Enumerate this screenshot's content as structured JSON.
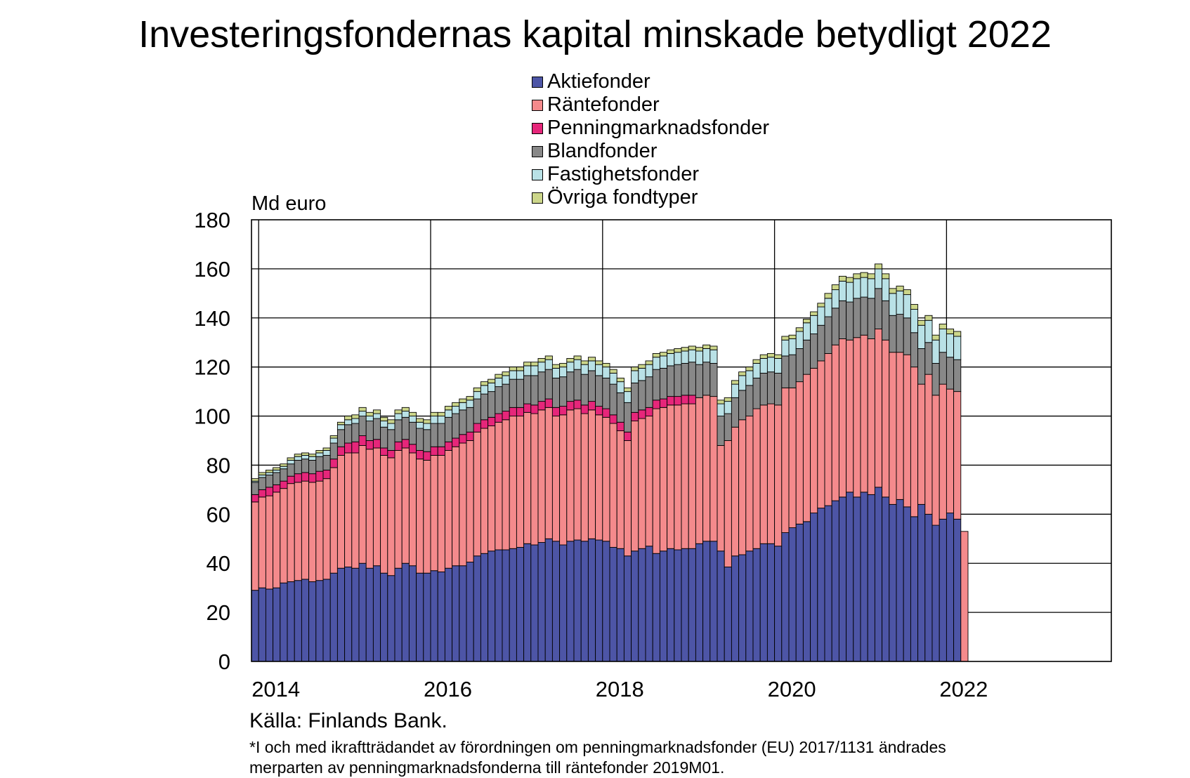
{
  "chart_data": {
    "type": "bar",
    "stacked": true,
    "title": "Investeringsfondernas kapital minskade betydligt 2022",
    "ylabel": "Md euro",
    "ylim": [
      0,
      180
    ],
    "yticks": [
      "0",
      "20",
      "40",
      "60",
      "80",
      "100",
      "120",
      "140",
      "160",
      "180"
    ],
    "xticks": [
      "2014",
      "2016",
      "2018",
      "2020",
      "2022"
    ],
    "x_start": "2013-12",
    "x_end": "2022-11",
    "grid": true,
    "legend_position": "top-center",
    "series": [
      {
        "name": "Aktiefonder",
        "color": "#4d55a6",
        "values": [
          29,
          30,
          29.5,
          30,
          32,
          32.5,
          33,
          33.5,
          32.5,
          33,
          33.5,
          36,
          38,
          38.5,
          38,
          40,
          38,
          39,
          36,
          35,
          38,
          40,
          39,
          36,
          36,
          37,
          36.5,
          38,
          39,
          39,
          40.5,
          43,
          44,
          45,
          45.5,
          45.5,
          46,
          46.5,
          48,
          47.5,
          48.5,
          50,
          49,
          47.5,
          49,
          49.5,
          49,
          50,
          49.5,
          49,
          46.5,
          46,
          43,
          45,
          46,
          47,
          44,
          45,
          46,
          45.5,
          46,
          46,
          48,
          49,
          49,
          45,
          38.5,
          43,
          43.5,
          45,
          46,
          48,
          48,
          47,
          52.5,
          54.5,
          56,
          57,
          60.5,
          62.5,
          63.5,
          65.5,
          67,
          69,
          67,
          69,
          68,
          71,
          67,
          64,
          66,
          63,
          59,
          64,
          60,
          55.5,
          58,
          60.5,
          58
        ]
      },
      {
        "name": "Räntefonder",
        "color": "#f48a8c",
        "values": [
          36,
          37,
          38,
          39,
          38.5,
          40,
          40,
          40,
          40.5,
          40.5,
          41,
          43,
          46,
          46.5,
          47,
          48,
          48.5,
          48,
          48,
          48,
          48,
          47,
          46,
          46.5,
          46,
          47,
          47.5,
          48,
          48.5,
          50,
          49.5,
          50.5,
          51,
          51,
          52,
          53,
          54,
          53.5,
          53.5,
          53.5,
          54,
          53.5,
          51,
          53,
          53.5,
          53.5,
          52,
          52.5,
          51,
          50.5,
          50.5,
          48,
          47,
          53,
          53,
          53,
          59,
          58.5,
          58.5,
          59,
          59,
          59,
          59.5,
          59.5,
          59,
          43,
          51.5,
          52.5,
          55,
          55,
          57,
          56.5,
          57,
          57.5,
          59,
          57,
          58,
          60,
          59,
          60,
          62,
          63.5,
          64.5,
          62,
          65,
          64,
          63.5,
          64.5,
          64,
          62,
          60,
          62,
          61,
          49,
          57,
          53,
          55,
          50.5,
          52,
          53
        ]
      },
      {
        "name": "Penningmarknadsfonder",
        "color": "#e6267a",
        "values": [
          3,
          3,
          3.5,
          3,
          3,
          3,
          3.5,
          3.5,
          3.5,
          4,
          3.5,
          3.5,
          3.5,
          4,
          4.5,
          4,
          3.5,
          3.5,
          3,
          3,
          3.5,
          3.5,
          3.5,
          3.5,
          3.5,
          3.5,
          3.5,
          3.5,
          3.5,
          3.5,
          3.5,
          3.5,
          3.5,
          3.5,
          3.5,
          3.5,
          3.5,
          3.5,
          3.5,
          3.5,
          3.5,
          3.5,
          3.5,
          3.5,
          3.5,
          3.5,
          3.5,
          3.5,
          3.5,
          3.5,
          3.5,
          3.5,
          3.5,
          3.5,
          3.5,
          3.5,
          3.5,
          3.5,
          3.5,
          3.5,
          3.5,
          3.5,
          0,
          0,
          0,
          0,
          0,
          0,
          0,
          0,
          0,
          0,
          0,
          0,
          0,
          0,
          0,
          0,
          0,
          0,
          0,
          0,
          0,
          0,
          0,
          0,
          0,
          0,
          0,
          0,
          0,
          0,
          0,
          0,
          0,
          0,
          0,
          0,
          0,
          0,
          0,
          0
        ]
      },
      {
        "name": "Blandfonder",
        "color": "#888888",
        "values": [
          5,
          5,
          5,
          5,
          5,
          5,
          5.5,
          5.5,
          5.5,
          6,
          6,
          6.5,
          7,
          7.5,
          7.5,
          8,
          8,
          8.5,
          8.5,
          8.5,
          9,
          9,
          9,
          9,
          9,
          9.5,
          9.5,
          10,
          10,
          10,
          10,
          10,
          10.5,
          10.5,
          11,
          11,
          11.5,
          11.5,
          11.5,
          12,
          12,
          12,
          12,
          12,
          12,
          12.5,
          12.5,
          12.5,
          12.5,
          12.5,
          12.5,
          12,
          12,
          12,
          12,
          12.5,
          12.5,
          12.5,
          12.5,
          13,
          13,
          13.5,
          13.5,
          13.5,
          13.5,
          12,
          11,
          12,
          12,
          12.5,
          12.5,
          13,
          13,
          13,
          13,
          13.5,
          13.5,
          14,
          14,
          14.5,
          15,
          15,
          15.5,
          15.5,
          16,
          15.5,
          16.5,
          16.5,
          16,
          15,
          15.5,
          15,
          14,
          14.5,
          13,
          13,
          13,
          13,
          13
        ]
      },
      {
        "name": "Fastighetsfonder",
        "color": "#b9e1e6",
        "values": [
          0.5,
          1,
          1,
          1,
          1,
          1.5,
          1.5,
          1.5,
          1.5,
          1.5,
          2,
          2,
          2,
          2,
          2,
          2,
          2,
          2,
          2.5,
          2.5,
          2.5,
          2.5,
          2.5,
          2.5,
          2.5,
          3,
          3,
          3,
          3,
          3,
          3,
          3,
          3.5,
          3.5,
          3.5,
          3.5,
          3.5,
          3.5,
          4,
          4,
          4,
          4,
          4,
          4,
          4,
          4,
          4,
          4,
          4.5,
          4.5,
          4.5,
          4.5,
          4.5,
          5,
          5,
          5,
          5,
          5,
          5,
          5,
          5,
          5,
          5.5,
          5.5,
          5.5,
          5,
          5,
          5.5,
          6,
          6,
          6,
          6,
          6,
          6,
          6.5,
          6.5,
          7,
          7,
          7.5,
          7.5,
          7.5,
          7.5,
          8,
          8,
          8,
          8,
          8,
          8,
          9,
          9,
          9.5,
          9.5,
          9.5,
          9.5,
          9,
          9.5,
          9.5,
          9.5,
          9.5
        ]
      },
      {
        "name": "Övriga fondtyper",
        "color": "#ccd68a",
        "values": [
          1,
          1,
          1,
          1,
          1,
          1,
          1,
          1,
          1,
          1,
          1,
          1,
          1,
          1.5,
          1.5,
          1.5,
          1.5,
          1.5,
          1.5,
          1.5,
          1.5,
          1.5,
          1.5,
          1.5,
          1.5,
          1.5,
          1.5,
          1.5,
          1.5,
          1.5,
          1.5,
          1.5,
          1.5,
          1.5,
          1.5,
          1.5,
          1.5,
          1.5,
          1.5,
          1.5,
          1.5,
          1.5,
          1.5,
          1.5,
          1.5,
          1.5,
          1.5,
          1.5,
          1.5,
          1.5,
          1.5,
          1.5,
          1.5,
          1.5,
          1.5,
          1.5,
          1.5,
          1.5,
          1.5,
          1.5,
          1.5,
          1.5,
          1.5,
          1.5,
          1.5,
          1.5,
          1.5,
          1.5,
          1.5,
          1.5,
          1.5,
          1.5,
          1.5,
          1.5,
          1.5,
          1.5,
          1.5,
          1.5,
          1.5,
          1.5,
          2,
          2,
          2,
          2,
          2,
          2,
          2,
          2,
          2,
          2,
          2,
          2,
          2,
          2,
          2,
          2,
          2,
          2,
          2
        ]
      }
    ]
  },
  "source_text": "Källa: Finlands Bank.",
  "footnote_lines": [
    "*I och med ikraftträdandet av förordningen om penningmarknadsfonder (EU) 2017/1131 ändrades",
    "merparten av penningmarknadsfonderna till räntefonder 2019M01."
  ]
}
